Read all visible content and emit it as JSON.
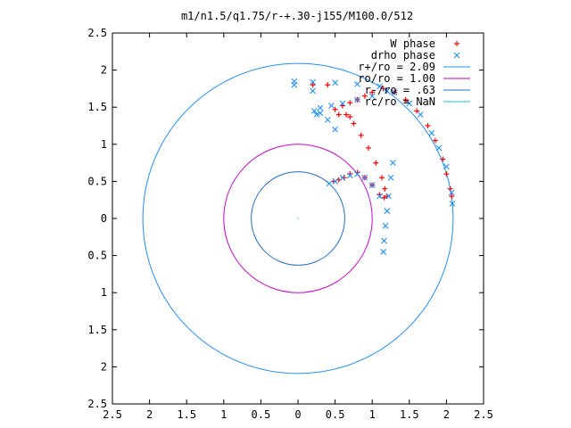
{
  "chart_data": {
    "type": "scatter",
    "title": "m1/n1.5/q1.75/r-+.30-j155/M100.0/512",
    "xlabel": "",
    "ylabel": "",
    "xlim": [
      -2.5,
      2.5
    ],
    "ylim": [
      -2.5,
      2.5
    ],
    "x_ticks": [
      -2.5,
      -2,
      -1.5,
      -1,
      -0.5,
      0,
      0.5,
      1,
      1.5,
      2,
      2.5
    ],
    "y_ticks": [
      -2.5,
      -2,
      -1.5,
      -1,
      -0.5,
      0,
      0.5,
      1,
      1.5,
      2,
      2.5
    ],
    "x_tick_labels": [
      "2.5",
      "2",
      "1.5",
      "1",
      "0.5",
      "0",
      "0.5",
      "1",
      "1.5",
      "2",
      "2.5"
    ],
    "y_tick_labels": [
      "2.5",
      "2",
      "1.5",
      "1",
      "0.5",
      "0",
      "0.5",
      "1",
      "1.5",
      "2",
      "2.5"
    ],
    "grid": false,
    "legend_position": "top-right",
    "series": [
      {
        "name": "W phase",
        "kind": "points",
        "marker": "plus",
        "color": "#ff0000",
        "points": [
          [
            1.2,
            0.3
          ],
          [
            1.17,
            0.4
          ],
          [
            1.13,
            0.55
          ],
          [
            1.05,
            0.75
          ],
          [
            0.95,
            0.95
          ],
          [
            0.85,
            1.12
          ],
          [
            0.75,
            1.28
          ],
          [
            0.7,
            1.37
          ],
          [
            0.65,
            1.4
          ],
          [
            0.55,
            1.4
          ],
          [
            0.5,
            1.47
          ],
          [
            0.6,
            1.52
          ],
          [
            0.7,
            1.56
          ],
          [
            0.8,
            1.6
          ],
          [
            0.9,
            1.65
          ],
          [
            1.0,
            1.7
          ],
          [
            1.15,
            1.75
          ],
          [
            1.3,
            1.7
          ],
          [
            1.45,
            1.6
          ],
          [
            1.6,
            1.45
          ],
          [
            1.75,
            1.25
          ],
          [
            1.85,
            1.05
          ],
          [
            1.95,
            0.8
          ],
          [
            2.0,
            0.6
          ],
          [
            2.05,
            0.4
          ],
          [
            2.07,
            0.3
          ],
          [
            1.16,
            0.28
          ],
          [
            1.1,
            0.32
          ],
          [
            1.0,
            0.45
          ],
          [
            0.9,
            0.55
          ],
          [
            0.8,
            0.62
          ],
          [
            0.7,
            0.6
          ],
          [
            0.62,
            0.55
          ],
          [
            0.55,
            0.52
          ],
          [
            0.48,
            0.5
          ],
          [
            0.4,
            1.8
          ],
          [
            0.2,
            1.8
          ]
        ]
      },
      {
        "name": "drho phase",
        "kind": "points",
        "marker": "cross",
        "color": "#1e90ff",
        "points": [
          [
            1.15,
            -0.45
          ],
          [
            1.16,
            -0.3
          ],
          [
            1.18,
            -0.1
          ],
          [
            1.2,
            0.1
          ],
          [
            1.22,
            0.3
          ],
          [
            1.25,
            0.55
          ],
          [
            1.28,
            0.75
          ],
          [
            1.1,
            0.3
          ],
          [
            1.0,
            0.45
          ],
          [
            0.9,
            0.55
          ],
          [
            0.8,
            0.6
          ],
          [
            0.7,
            0.58
          ],
          [
            0.6,
            0.55
          ],
          [
            0.5,
            0.5
          ],
          [
            0.42,
            0.47
          ],
          [
            0.5,
            1.2
          ],
          [
            0.4,
            1.33
          ],
          [
            0.3,
            1.42
          ],
          [
            0.25,
            1.4
          ],
          [
            0.22,
            1.45
          ],
          [
            0.3,
            1.49
          ],
          [
            0.45,
            1.52
          ],
          [
            0.6,
            1.55
          ],
          [
            0.8,
            1.6
          ],
          [
            1.0,
            1.65
          ],
          [
            1.2,
            1.72
          ],
          [
            0.2,
            1.72
          ],
          [
            -0.05,
            1.8
          ],
          [
            -0.05,
            1.85
          ],
          [
            0.2,
            1.84
          ],
          [
            0.5,
            1.83
          ],
          [
            0.8,
            1.81
          ],
          [
            1.1,
            1.78
          ],
          [
            1.3,
            1.7
          ],
          [
            1.5,
            1.55
          ],
          [
            1.65,
            1.4
          ],
          [
            1.8,
            1.15
          ],
          [
            1.9,
            0.95
          ],
          [
            2.0,
            0.7
          ],
          [
            2.07,
            0.35
          ],
          [
            2.08,
            0.2
          ]
        ]
      },
      {
        "name": "r+/ro = 2.09",
        "kind": "circle",
        "radius": 2.09,
        "color": "#1e90ff"
      },
      {
        "name": "ro/ro = 1.00",
        "kind": "circle",
        "radius": 1.0,
        "color": "#cc00cc"
      },
      {
        "name": "r-/ro = .63",
        "kind": "circle",
        "radius": 0.63,
        "color": "#1e6fd0"
      },
      {
        "name": "rc/ro = NaN",
        "kind": "circle",
        "radius": null,
        "color": "#00cccc"
      }
    ]
  }
}
